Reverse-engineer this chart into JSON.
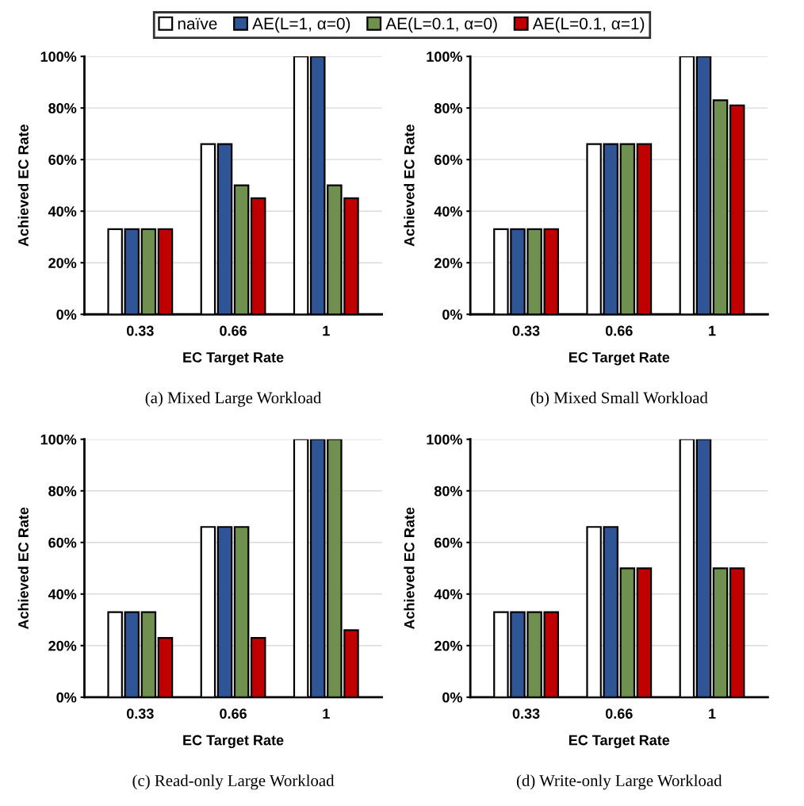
{
  "chart_data": [
    {
      "type": "bar",
      "title": "(a) Mixed Large Workload",
      "xlabel": "EC Target Rate",
      "ylabel": "Achieved EC Rate",
      "categories": [
        "0.33",
        "0.66",
        "1"
      ],
      "series": [
        {
          "name": "naïve",
          "color": "#ffffff",
          "values": [
            33,
            66,
            100
          ]
        },
        {
          "name": "AE(L=1, α=0)",
          "color": "#2f5597",
          "values": [
            33,
            66,
            100
          ]
        },
        {
          "name": "AE(L=0.1, α=0)",
          "color": "#70904f",
          "values": [
            33,
            50,
            50
          ]
        },
        {
          "name": "AE(L=0.1, α=1)",
          "color": "#c00000",
          "values": [
            33,
            45,
            45
          ]
        }
      ],
      "ylim": [
        0,
        100
      ],
      "yticks": [
        {
          "value": 0,
          "label": "0%"
        },
        {
          "value": 20,
          "label": "20%"
        },
        {
          "value": 40,
          "label": "40%"
        },
        {
          "value": 60,
          "label": "60%"
        },
        {
          "value": 80,
          "label": "80%"
        },
        {
          "value": 100,
          "label": "100%"
        }
      ],
      "grid": "y",
      "legend": "top"
    },
    {
      "type": "bar",
      "title": "(b) Mixed Small Workload",
      "xlabel": "EC Target Rate",
      "ylabel": "Achieved EC Rate",
      "categories": [
        "0.33",
        "0.66",
        "1"
      ],
      "series": [
        {
          "color": "#ffffff",
          "values": [
            33,
            66,
            100
          ]
        },
        {
          "color": "#2f5597",
          "values": [
            33,
            66,
            100
          ]
        },
        {
          "color": "#70904f",
          "values": [
            33,
            66,
            83
          ]
        },
        {
          "color": "#c00000",
          "values": [
            33,
            66,
            81
          ]
        }
      ],
      "ylim": [
        0,
        100
      ],
      "yticks": [
        {
          "value": 0,
          "label": "0%"
        },
        {
          "value": 20,
          "label": "20%"
        },
        {
          "value": 40,
          "label": "40%"
        },
        {
          "value": 60,
          "label": "60%"
        },
        {
          "value": 80,
          "label": "80%"
        },
        {
          "value": 100,
          "label": "100%"
        }
      ],
      "grid": "y"
    },
    {
      "type": "bar",
      "title": "(c) Read-only Large Workload",
      "xlabel": "EC Target Rate",
      "ylabel": "Achieved EC Rate",
      "categories": [
        "0.33",
        "0.66",
        "1"
      ],
      "series": [
        {
          "color": "#ffffff",
          "values": [
            33,
            66,
            100
          ]
        },
        {
          "color": "#2f5597",
          "values": [
            33,
            66,
            100
          ]
        },
        {
          "color": "#70904f",
          "values": [
            33,
            66,
            100
          ]
        },
        {
          "color": "#c00000",
          "values": [
            23,
            23,
            26
          ]
        }
      ],
      "ylim": [
        0,
        100
      ],
      "yticks": [
        {
          "value": 0,
          "label": "0%"
        },
        {
          "value": 20,
          "label": "20%"
        },
        {
          "value": 40,
          "label": "40%"
        },
        {
          "value": 60,
          "label": "60%"
        },
        {
          "value": 80,
          "label": "80%"
        },
        {
          "value": 100,
          "label": "100%"
        }
      ],
      "grid": "y"
    },
    {
      "type": "bar",
      "title": "(d) Write-only Large Workload",
      "xlabel": "EC Target Rate",
      "ylabel": "Achieved EC Rate",
      "categories": [
        "0.33",
        "0.66",
        "1"
      ],
      "series": [
        {
          "color": "#ffffff",
          "values": [
            33,
            66,
            100
          ]
        },
        {
          "color": "#2f5597",
          "values": [
            33,
            66,
            100
          ]
        },
        {
          "color": "#70904f",
          "values": [
            33,
            50,
            50
          ]
        },
        {
          "color": "#c00000",
          "values": [
            33,
            50,
            50
          ]
        }
      ],
      "ylim": [
        0,
        100
      ],
      "yticks": [
        {
          "value": 0,
          "label": "0%"
        },
        {
          "value": 20,
          "label": "20%"
        },
        {
          "value": 40,
          "label": "40%"
        },
        {
          "value": 60,
          "label": "60%"
        },
        {
          "value": 80,
          "label": "80%"
        },
        {
          "value": 100,
          "label": "100%"
        }
      ],
      "grid": "y"
    }
  ]
}
